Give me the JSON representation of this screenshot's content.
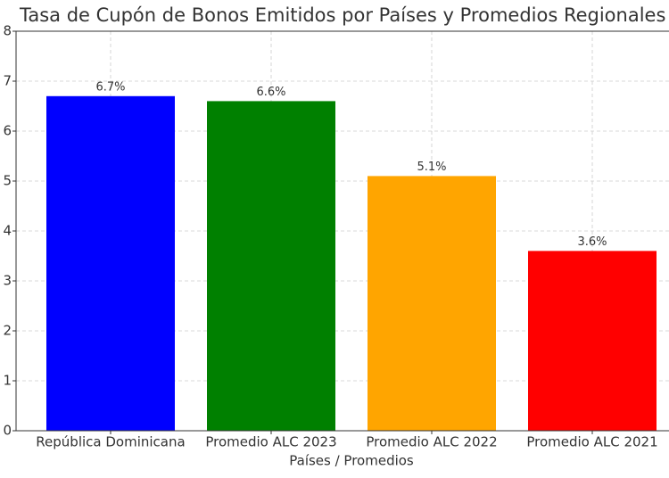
{
  "chart_data": {
    "type": "bar",
    "title": "Tasa de Cupón de Bonos Emitidos por Países y Promedios Regionales",
    "xlabel": "Países / Promedios",
    "categories": [
      "República Dominicana",
      "Promedio ALC 2023",
      "Promedio ALC 2022",
      "Promedio ALC 2021"
    ],
    "values": [
      6.7,
      6.6,
      5.1,
      3.6
    ],
    "value_labels": [
      "6.7%",
      "6.6%",
      "5.1%",
      "3.6%"
    ],
    "colors": [
      "#0000ff",
      "#008000",
      "#ffa500",
      "#ff0000"
    ],
    "ylim": [
      0,
      8
    ],
    "yticks": [
      0,
      1,
      2,
      3,
      4,
      5,
      6,
      7,
      8
    ],
    "grid": true
  }
}
